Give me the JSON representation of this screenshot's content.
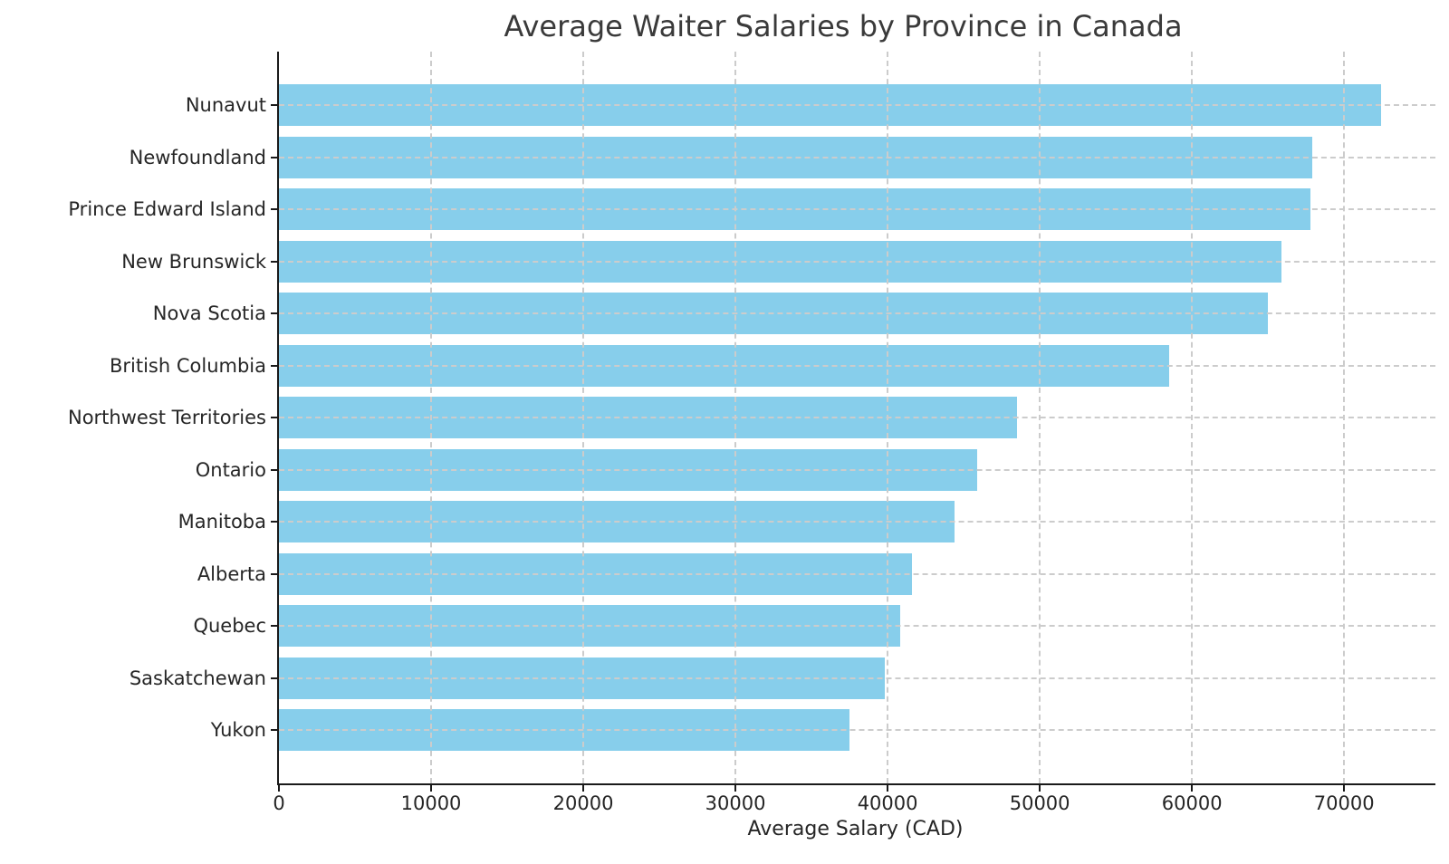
{
  "chart_data": {
    "type": "bar",
    "orientation": "horizontal",
    "title": "Average Waiter Salaries by Province in Canada",
    "xlabel": "Average Salary (CAD)",
    "ylabel": "",
    "categories": [
      "Nunavut",
      "Newfoundland",
      "Prince Edward Island",
      "New Brunswick",
      "Nova Scotia",
      "British Columbia",
      "Northwest Territories",
      "Ontario",
      "Manitoba",
      "Alberta",
      "Quebec",
      "Saskatchewan",
      "Yukon"
    ],
    "values": [
      72400,
      67900,
      67800,
      65900,
      65000,
      58500,
      48500,
      45900,
      44400,
      41600,
      40800,
      39800,
      37500
    ],
    "xlim": [
      0,
      76000
    ],
    "xticks": [
      0,
      10000,
      20000,
      30000,
      40000,
      50000,
      60000,
      70000
    ],
    "grid": true,
    "grid_style": "dashed",
    "legend": false,
    "colors": {
      "bar": "#87ceeb",
      "grid": "#cccccc",
      "axis": "#1a1a1a",
      "tick_text": "#262626",
      "title_text": "#3a3a3a",
      "background": "#ffffff"
    }
  }
}
